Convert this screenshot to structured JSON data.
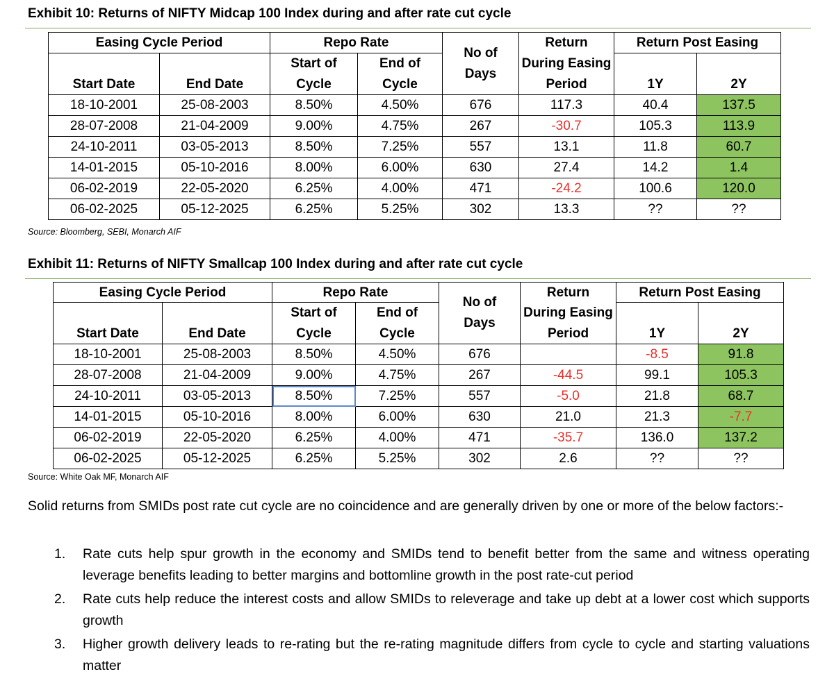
{
  "exhibits": [
    {
      "title": "Exhibit 10: Returns of NIFTY Midcap 100 Index during and after rate cut cycle",
      "headers": {
        "easing_cycle_period": "Easing Cycle Period",
        "repo_rate": "Repo Rate",
        "no_of_days": "No of Days",
        "no_of_days_l1": "No of",
        "no_of_days_l2": "Days",
        "return_during_l1": "Return",
        "return_during_l2": "During Easing",
        "return_during_l3": "Period",
        "return_post_easing": "Return Post Easing",
        "start_of_l1": "Start of",
        "start_of_l2": "Cycle",
        "end_of_l1": "End of",
        "end_of_l2": "Cycle",
        "start_date": "Start Date",
        "end_date": "End Date",
        "y1": "1Y",
        "y2": "2Y"
      },
      "rows": [
        {
          "start_date": "18-10-2001",
          "end_date": "25-08-2003",
          "repo_start": "8.50%",
          "repo_end": "4.50%",
          "days": "676",
          "return_during": "117.3",
          "return_1y": "40.4",
          "return_2y": "137.5"
        },
        {
          "start_date": "28-07-2008",
          "end_date": "21-04-2009",
          "repo_start": "9.00%",
          "repo_end": "4.75%",
          "days": "267",
          "return_during": "-30.7",
          "return_1y": "105.3",
          "return_2y": "113.9"
        },
        {
          "start_date": "24-10-2011",
          "end_date": "03-05-2013",
          "repo_start": "8.50%",
          "repo_end": "7.25%",
          "days": "557",
          "return_during": "13.1",
          "return_1y": "11.8",
          "return_2y": "60.7"
        },
        {
          "start_date": "14-01-2015",
          "end_date": "05-10-2016",
          "repo_start": "8.00%",
          "repo_end": "6.00%",
          "days": "630",
          "return_during": "27.4",
          "return_1y": "14.2",
          "return_2y": "1.4"
        },
        {
          "start_date": "06-02-2019",
          "end_date": "22-05-2020",
          "repo_start": "6.25%",
          "repo_end": "4.00%",
          "days": "471",
          "return_during": "-24.2",
          "return_1y": "100.6",
          "return_2y": "120.0"
        },
        {
          "start_date": "06-02-2025",
          "end_date": "05-12-2025",
          "repo_start": "6.25%",
          "repo_end": "5.25%",
          "days": "302",
          "return_during": "13.3",
          "return_1y": "??",
          "return_2y": "??"
        }
      ],
      "source": "Source: Bloomberg, SEBI, Monarch AIF"
    },
    {
      "title": "Exhibit 11: Returns of NIFTY Smallcap 100 Index during and after rate cut cycle",
      "headers": {
        "easing_cycle_period": "Easing Cycle Period",
        "repo_rate": "Repo Rate",
        "no_of_days_l1": "No of",
        "no_of_days_l2": "Days",
        "return_during_l1": "Return",
        "return_during_l2": "During Easing",
        "return_during_l3": "Period",
        "return_post_easing": "Return Post Easing",
        "start_of_l1": "Start of",
        "start_of_l2": "Cycle",
        "end_of_l1": "End of",
        "end_of_l2": "Cycle",
        "start_date": "Start Date",
        "end_date": "End Date",
        "y1": "1Y",
        "y2": "2Y"
      },
      "rows": [
        {
          "start_date": "18-10-2001",
          "end_date": "25-08-2003",
          "repo_start": "8.50%",
          "repo_end": "4.50%",
          "days": "676",
          "return_during": "",
          "return_1y": "-8.5",
          "return_2y": "91.8"
        },
        {
          "start_date": "28-07-2008",
          "end_date": "21-04-2009",
          "repo_start": "9.00%",
          "repo_end": "4.75%",
          "days": "267",
          "return_during": "-44.5",
          "return_1y": "99.1",
          "return_2y": "105.3"
        },
        {
          "start_date": "24-10-2011",
          "end_date": "03-05-2013",
          "repo_start": "8.50%",
          "repo_end": "7.25%",
          "days": "557",
          "return_during": "-5.0",
          "return_1y": "21.8",
          "return_2y": "68.7"
        },
        {
          "start_date": "14-01-2015",
          "end_date": "05-10-2016",
          "repo_start": "8.00%",
          "repo_end": "6.00%",
          "days": "630",
          "return_during": "21.0",
          "return_1y": "21.3",
          "return_2y": "-7.7"
        },
        {
          "start_date": "06-02-2019",
          "end_date": "22-05-2020",
          "repo_start": "6.25%",
          "repo_end": "4.00%",
          "days": "471",
          "return_during": "-35.7",
          "return_1y": "136.0",
          "return_2y": "137.2"
        },
        {
          "start_date": "06-02-2025",
          "end_date": "05-12-2025",
          "repo_start": "6.25%",
          "repo_end": "5.25%",
          "days": "302",
          "return_during": "2.6",
          "return_1y": "??",
          "return_2y": "??"
        }
      ],
      "source": "Source: White Oak MF, Monarch AIF"
    }
  ],
  "colors": {
    "highlight_green": "#8dc45f",
    "negative_red": "#e8302a",
    "rule_green": "#7aa655",
    "selection_blue": "#5f88c9"
  },
  "body": {
    "intro": "Solid returns from SMIDs post rate cut cycle are no coincidence and are generally driven by one or more of the below factors:-",
    "points": [
      {
        "num": "1.",
        "text": "Rate cuts help spur growth in the economy and SMIDs tend to benefit better from the same and witness operating leverage benefits leading to better margins and bottomline growth in the post rate-cut period"
      },
      {
        "num": "2.",
        "text": "Rate cuts help reduce the interest costs and allow SMIDs to releverage and take up debt at a lower cost which supports growth"
      },
      {
        "num": "3.",
        "text": "Higher growth delivery leads to re-rating but the re-rating magnitude differs from cycle to cycle and starting valuations matter"
      }
    ]
  }
}
